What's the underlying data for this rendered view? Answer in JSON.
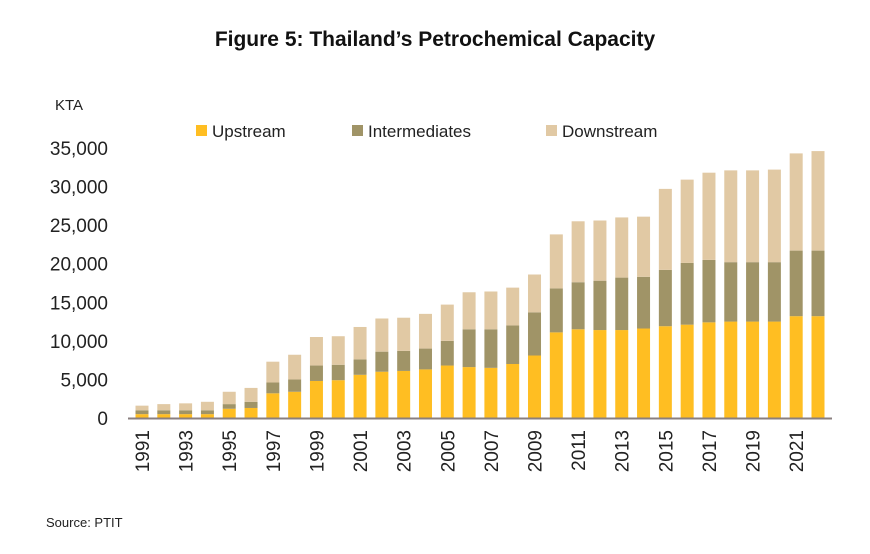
{
  "chart_data": {
    "type": "bar",
    "stacked": true,
    "title": "Figure 5: Thailand’s Petrochemical Capacity",
    "ylabel": "KTA",
    "xlabel": "",
    "ylim": [
      0,
      35000
    ],
    "yticks": [
      0,
      5000,
      10000,
      15000,
      20000,
      25000,
      30000,
      35000
    ],
    "ytick_labels": [
      "0",
      "5,000",
      "10,000",
      "15,000",
      "20,000",
      "25,000",
      "30,000",
      "35,000"
    ],
    "legend_position": "top",
    "grid": false,
    "categories": [
      "1991",
      "1992",
      "1993",
      "1994",
      "1995",
      "1996",
      "1997",
      "1998",
      "1999",
      "2000",
      "2001",
      "2002",
      "2003",
      "2004",
      "2005",
      "2006",
      "2007",
      "2008",
      "2009",
      "2010",
      "2011",
      "2012",
      "2013",
      "2014",
      "2015",
      "2016",
      "2017",
      "2018",
      "2019",
      "2020",
      "2021",
      "2022"
    ],
    "series": [
      {
        "name": "Upstream",
        "color": "#FFBE22",
        "values": [
          500,
          500,
          500,
          500,
          1200,
          1300,
          3200,
          3400,
          4800,
          4900,
          5600,
          6000,
          6100,
          6300,
          6800,
          6600,
          6500,
          7000,
          8100,
          11100,
          11500,
          11400,
          11400,
          11600,
          11900,
          12100,
          12400,
          12500,
          12500,
          12500,
          13200,
          13200
        ]
      },
      {
        "name": "Intermediates",
        "color": "#A09467",
        "values": [
          500,
          500,
          500,
          500,
          600,
          800,
          1400,
          1600,
          2000,
          2000,
          2000,
          2600,
          2600,
          2700,
          3200,
          4900,
          5000,
          5000,
          5600,
          5700,
          6100,
          6400,
          6800,
          6700,
          7300,
          8000,
          8100,
          7700,
          7700,
          7700,
          8500,
          8500
        ]
      },
      {
        "name": "Downstream",
        "color": "#E1C9A4",
        "values": [
          600,
          800,
          900,
          1100,
          1600,
          1800,
          2700,
          3200,
          3700,
          3700,
          4200,
          4300,
          4300,
          4500,
          4700,
          4800,
          4900,
          4900,
          4900,
          7000,
          7900,
          7800,
          7800,
          7800,
          10500,
          10800,
          11300,
          11900,
          11900,
          12000,
          12600,
          12900
        ]
      }
    ]
  },
  "source": "Source: PTIT"
}
